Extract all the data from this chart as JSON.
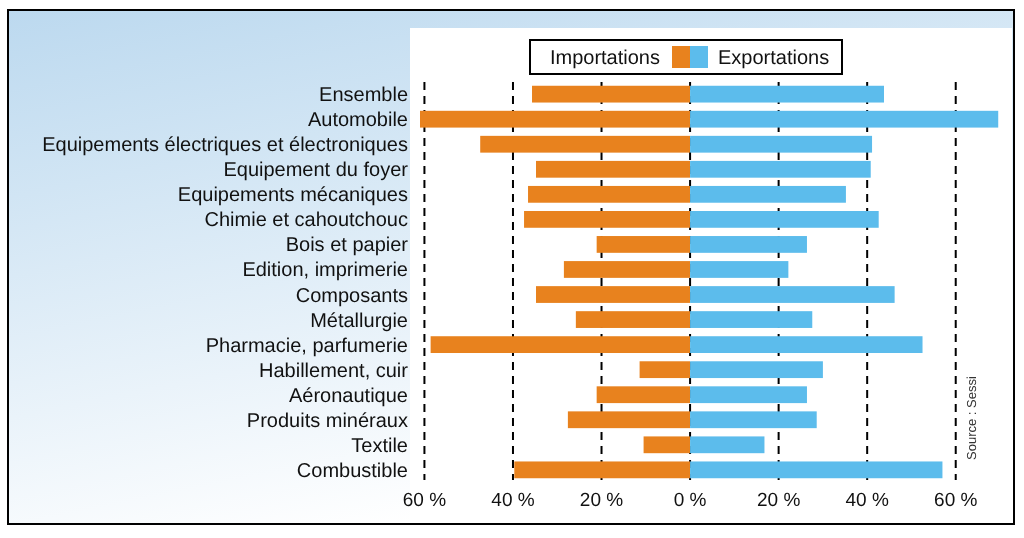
{
  "chart_data": {
    "type": "bar",
    "orientation": "horizontal",
    "stacked": true,
    "categories": [
      "Ensemble",
      "Automobile",
      "Equipements électriques et électroniques",
      "Equipement du foyer",
      "Equipements mécaniques",
      "Chimie et cahoutchouc",
      "Bois et papier",
      "Edition, imprimerie",
      "Composants",
      "Métallurgie",
      "Pharmacie, parfumerie",
      "Habillement, cuir",
      "Aéronautique",
      "Produits minéraux",
      "Textile",
      "Combustible"
    ],
    "series": [
      {
        "name": "Importations",
        "color": "#e8821e",
        "values": [
          -35.7,
          -61,
          -47.4,
          -34.8,
          -36.6,
          -37.5,
          -21.1,
          -28.5,
          -34.8,
          -25.8,
          -58.6,
          -11.4,
          -21.1,
          -27.6,
          -10.5,
          -39.7
        ]
      },
      {
        "name": "Exportations",
        "color": "#5cbcec",
        "values": [
          43.8,
          69.6,
          41.1,
          40.8,
          35.2,
          42.6,
          26.4,
          22.2,
          46.2,
          27.6,
          52.5,
          30,
          26.4,
          28.6,
          16.8,
          57
        ]
      }
    ],
    "xlim": [
      -61,
      70
    ],
    "xticks": [
      {
        "value": -60,
        "label": "60 %"
      },
      {
        "value": -40,
        "label": "40 %"
      },
      {
        "value": -20,
        "label": "20 %"
      },
      {
        "value": 0,
        "label": "0 %"
      },
      {
        "value": 20,
        "label": "20 %"
      },
      {
        "value": 40,
        "label": "40 %"
      },
      {
        "value": 60,
        "label": "60 %"
      }
    ],
    "grid": "x",
    "legend": "top",
    "annotations": [
      "Source : Sessi"
    ]
  }
}
